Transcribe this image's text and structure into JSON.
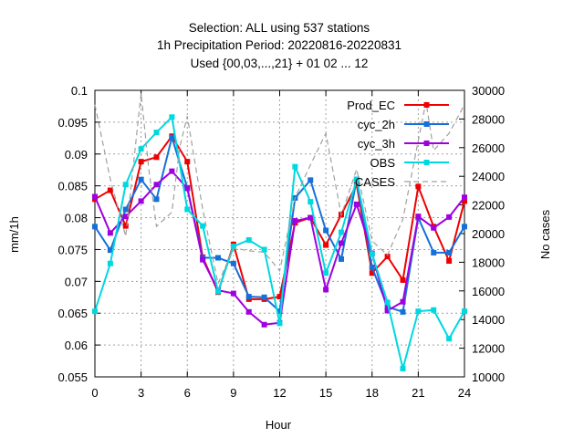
{
  "chart_data": {
    "type": "line",
    "title_lines": [
      "Selection: ALL using   537 stations",
      "1h Precipitation   Period: 20220816-20220831",
      "Used {00,03,...,21} + 01 02 ... 12"
    ],
    "xlabel": "Hour",
    "ylabel": "mm/1h",
    "y2label": "No cases",
    "xlim": [
      0,
      24
    ],
    "ylim": [
      0.055,
      0.1
    ],
    "y2lim": [
      10000,
      30000
    ],
    "xticks": [
      "0",
      "3",
      "6",
      "9",
      "12",
      "15",
      "18",
      "21",
      "24"
    ],
    "yticks": [
      "0.055",
      "0.06",
      "0.065",
      "0.07",
      "0.075",
      "0.08",
      "0.085",
      "0.09",
      "0.095",
      "0.1"
    ],
    "y2ticks": [
      "10000",
      "12000",
      "14000",
      "16000",
      "18000",
      "20000",
      "22000",
      "24000",
      "26000",
      "28000",
      "30000"
    ],
    "grid": true,
    "legend_position": "top-right",
    "x": [
      0,
      1,
      2,
      3,
      4,
      5,
      6,
      7,
      8,
      9,
      10,
      11,
      12,
      13,
      14,
      15,
      16,
      17,
      18,
      19,
      20,
      21,
      22,
      23,
      24
    ],
    "series": [
      {
        "name": "Prod_EC",
        "color": "#ee0000",
        "marker": "square",
        "dash": "",
        "values": [
          0.0829,
          0.0843,
          0.0787,
          0.0888,
          0.0895,
          0.0928,
          0.0888,
          0.0738,
          0.0683,
          0.0758,
          0.0672,
          0.0672,
          0.0676,
          0.0792,
          0.08,
          0.0757,
          0.0805,
          0.0852,
          0.0713,
          0.0739,
          0.0702,
          0.0849,
          0.0786,
          0.0732,
          0.0826
        ]
      },
      {
        "name": "cyc_2h",
        "color": "#1670d8",
        "marker": "square",
        "dash": "",
        "values": [
          0.0786,
          0.0749,
          0.0813,
          0.086,
          0.0829,
          0.0926,
          0.0847,
          0.0737,
          0.0737,
          0.0728,
          0.0676,
          0.0675,
          0.0653,
          0.0831,
          0.0859,
          0.078,
          0.0735,
          0.086,
          0.0722,
          0.066,
          0.0652,
          0.08,
          0.0745,
          0.0745,
          0.0786
        ]
      },
      {
        "name": "cyc_3h",
        "color": "#a000e0",
        "marker": "square",
        "dash": "",
        "values": [
          0.0833,
          0.0776,
          0.0802,
          0.0826,
          0.0852,
          0.0873,
          0.0846,
          0.0734,
          0.0686,
          0.0681,
          0.0652,
          0.0632,
          0.0635,
          0.0795,
          0.08,
          0.0687,
          0.076,
          0.0821,
          0.0744,
          0.0654,
          0.0668,
          0.0802,
          0.0784,
          0.0801,
          0.0832
        ]
      },
      {
        "name": "OBS",
        "color": "#00d8e0",
        "marker": "square",
        "dash": "",
        "values": [
          0.0653,
          0.0728,
          0.0852,
          0.0908,
          0.0934,
          0.0958,
          0.0813,
          0.0787,
          0.0684,
          0.0755,
          0.0765,
          0.075,
          0.0634,
          0.088,
          0.0825,
          0.0713,
          0.0777,
          0.086,
          0.0743,
          0.0667,
          0.0563,
          0.0653,
          0.0655,
          0.061,
          0.0653
        ]
      },
      {
        "name": "CASES",
        "color": "#a0a0a0",
        "marker": "none",
        "dash": "6,4",
        "axis": "y2",
        "x": [
          0,
          1,
          2,
          3,
          3.5,
          4,
          5,
          5.5,
          6,
          7,
          8,
          9,
          10,
          11,
          12,
          13,
          14,
          15,
          16,
          17,
          18,
          19,
          20,
          21,
          21.5,
          22,
          23,
          24
        ],
        "values": [
          29000,
          23800,
          19800,
          29800,
          24500,
          20500,
          21500,
          26000,
          28200,
          21700,
          16500,
          19000,
          18800,
          18700,
          17400,
          22500,
          24800,
          27000,
          21300,
          24500,
          19500,
          18500,
          21000,
          26500,
          29200,
          25800,
          27000,
          29000
        ]
      }
    ]
  }
}
